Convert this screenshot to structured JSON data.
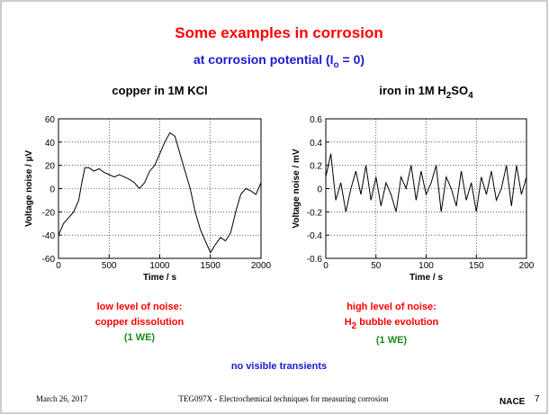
{
  "slide": {
    "title": "Some examples in corrosion",
    "subtitle": [
      "at corrosion potential  (I",
      "o",
      " = 0)"
    ],
    "left_notes": [
      "low level of noise:",
      "copper dissolution",
      "(1 WE)"
    ],
    "right_notes": [
      "high level of noise:",
      "H",
      "2",
      " bubble evolution",
      "(1 WE)"
    ],
    "bottom_note": "no visible transients",
    "footer": {
      "date": "March 26, 2017",
      "course": "TEG097X - Electrochemical techniques for measuring corrosion",
      "logo": "NACE",
      "page": "7"
    }
  },
  "chart_data": [
    {
      "type": "line",
      "title": [
        "copper in 1M KCl"
      ],
      "xlabel": "Time / s",
      "ylabel": "Voltage noise  /  µV",
      "x": [
        0,
        50,
        100,
        150,
        200,
        230,
        260,
        300,
        350,
        400,
        450,
        500,
        550,
        600,
        650,
        700,
        750,
        800,
        850,
        900,
        950,
        1000,
        1050,
        1100,
        1150,
        1200,
        1250,
        1300,
        1350,
        1400,
        1450,
        1500,
        1550,
        1600,
        1650,
        1700,
        1750,
        1800,
        1850,
        1900,
        1950,
        2000
      ],
      "series": [
        {
          "color": "#000000",
          "values": [
            -40,
            -30,
            -25,
            -20,
            -10,
            5,
            18,
            18,
            15,
            17,
            14,
            12,
            10,
            12,
            10,
            8,
            5,
            0,
            5,
            15,
            20,
            30,
            40,
            48,
            45,
            30,
            15,
            0,
            -20,
            -35,
            -45,
            -55,
            -48,
            -42,
            -45,
            -38,
            -20,
            -5,
            0,
            -2,
            -5,
            5
          ]
        }
      ],
      "xlim": [
        0,
        2000
      ],
      "xticks": [
        0,
        500,
        1000,
        1500,
        2000
      ],
      "ylim": [
        -60,
        60
      ],
      "yticks": [
        -60,
        -40,
        -20,
        0,
        20,
        40,
        60
      ],
      "grid": true
    },
    {
      "type": "line",
      "title": [
        "iron in 1M H",
        "2",
        "SO",
        "4"
      ],
      "xlabel": "Time / s",
      "ylabel": "Voltage noise  /  mV",
      "x": [
        0,
        5,
        10,
        15,
        20,
        25,
        30,
        35,
        40,
        45,
        50,
        55,
        60,
        65,
        70,
        75,
        80,
        85,
        90,
        95,
        100,
        105,
        110,
        115,
        120,
        125,
        130,
        135,
        140,
        145,
        150,
        155,
        160,
        165,
        170,
        175,
        180,
        185,
        190,
        195,
        200
      ],
      "series": [
        {
          "color": "#000000",
          "values": [
            0.1,
            0.3,
            -0.1,
            0.05,
            -0.2,
            0.0,
            0.15,
            -0.05,
            0.2,
            -0.1,
            0.1,
            -0.15,
            0.05,
            -0.05,
            -0.2,
            0.1,
            0.0,
            0.2,
            -0.1,
            0.15,
            -0.05,
            0.05,
            0.2,
            -0.2,
            0.1,
            0.0,
            -0.15,
            0.15,
            -0.1,
            0.05,
            -0.2,
            0.1,
            -0.05,
            0.15,
            -0.1,
            0.0,
            0.2,
            -0.15,
            0.2,
            -0.05,
            0.1
          ]
        }
      ],
      "xlim": [
        0,
        200
      ],
      "xticks": [
        0,
        50,
        100,
        150,
        200
      ],
      "ylim": [
        -0.6,
        0.6
      ],
      "yticks": [
        -0.6,
        -0.4,
        -0.2,
        0,
        0.2,
        0.4,
        0.6
      ],
      "grid": true
    }
  ]
}
